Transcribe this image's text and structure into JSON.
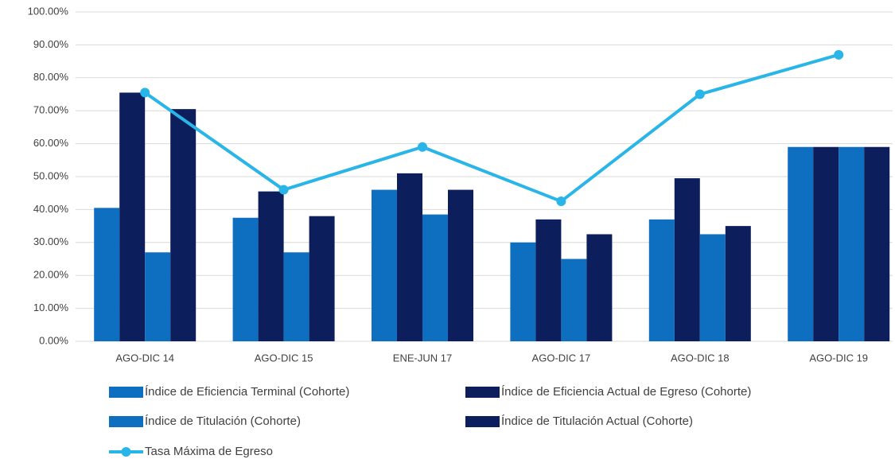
{
  "chart_data": {
    "type": "bar",
    "categories": [
      "AGO-DIC 14",
      "AGO-DIC 15",
      "ENE-JUN 17",
      "AGO-DIC 17",
      "AGO-DIC 18",
      "AGO-DIC 19"
    ],
    "series": [
      {
        "name": "Índice de Eficiencia Terminal (Cohorte)",
        "color": "#0e6fc1",
        "type": "bar",
        "values": [
          40.5,
          37.5,
          46,
          30,
          37,
          59
        ]
      },
      {
        "name": "Índice de Eficiencia Actual de Egreso (Cohorte)",
        "color": "#0c1f5c",
        "type": "bar",
        "values": [
          75.5,
          45.5,
          51,
          37,
          49.5,
          59
        ]
      },
      {
        "name": "Índice de Titulación (Cohorte)",
        "color": "#0e6fc1",
        "type": "bar",
        "values": [
          27,
          27,
          38.5,
          25,
          32.5,
          59
        ]
      },
      {
        "name": "Índice de Titulación Actual (Cohorte)",
        "color": "#0c1f5c",
        "type": "bar",
        "values": [
          70.5,
          38,
          46,
          32.5,
          35,
          59
        ]
      },
      {
        "name": "Tasa Máxima de Egreso",
        "color": "#29b5e8",
        "type": "line",
        "values": [
          75.5,
          46,
          59,
          42.5,
          75,
          87
        ]
      }
    ],
    "ylim": [
      0,
      100
    ],
    "yticks": [
      {
        "value": 0,
        "label": "0.00%"
      },
      {
        "value": 10,
        "label": "10.00%"
      },
      {
        "value": 20,
        "label": "20.00%"
      },
      {
        "value": 30,
        "label": "30.00%"
      },
      {
        "value": 40,
        "label": "40.00%"
      },
      {
        "value": 50,
        "label": "50.00%"
      },
      {
        "value": 60,
        "label": "60.00%"
      },
      {
        "value": 70,
        "label": "70.00%"
      },
      {
        "value": 80,
        "label": "80.00%"
      },
      {
        "value": 90,
        "label": "90.00%"
      },
      {
        "value": 100,
        "label": "100.00%"
      }
    ],
    "grid": true
  }
}
